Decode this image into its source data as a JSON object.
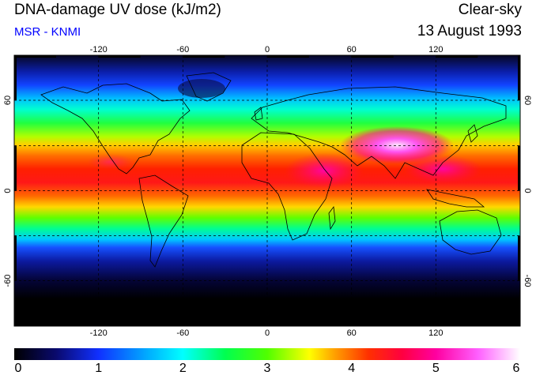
{
  "header": {
    "title": "DNA-damage UV dose (kJ/m2)",
    "source": "MSR - KNMI",
    "source_color": "#0000ff",
    "sky_condition": "Clear-sky",
    "date": "13 August 1993"
  },
  "map": {
    "lon_ticks": [
      "-120",
      "-60",
      "0",
      "60",
      "120"
    ],
    "lat_ticks": [
      "60",
      "0",
      "-60"
    ],
    "extent": {
      "lon": [
        -180,
        180
      ],
      "lat": [
        -90,
        90
      ]
    },
    "grid": true
  },
  "colorbar": {
    "labels": [
      "0",
      "1",
      "2",
      "3",
      "4",
      "5",
      "6"
    ],
    "stops": [
      {
        "value": 0,
        "color": "#000000"
      },
      {
        "value": 0.5,
        "color": "#0a0a6e"
      },
      {
        "value": 1,
        "color": "#1030ff"
      },
      {
        "value": 1.6,
        "color": "#00b0ff"
      },
      {
        "value": 2,
        "color": "#00ffff"
      },
      {
        "value": 2.5,
        "color": "#00ff50"
      },
      {
        "value": 3,
        "color": "#50ff00"
      },
      {
        "value": 3.5,
        "color": "#ffff00"
      },
      {
        "value": 3.8,
        "color": "#ffa000"
      },
      {
        "value": 4.2,
        "color": "#ff3000"
      },
      {
        "value": 4.6,
        "color": "#ff0040"
      },
      {
        "value": 5,
        "color": "#ff00a0"
      },
      {
        "value": 5.5,
        "color": "#ff60ff"
      },
      {
        "value": 6,
        "color": "#ffffff"
      }
    ]
  }
}
